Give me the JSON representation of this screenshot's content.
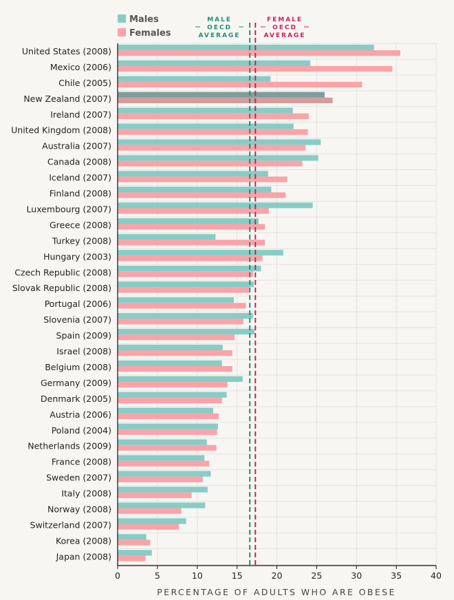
{
  "chart_data": {
    "type": "bar",
    "orientation": "horizontal",
    "xlabel": "PERCENTAGE OF ADULTS WHO ARE OBESE",
    "xlim": [
      0,
      40
    ],
    "xticks": [
      0,
      5,
      10,
      15,
      20,
      25,
      30,
      35,
      40
    ],
    "grid": true,
    "legend_position": "top-left",
    "categories": [
      "United States (2008)",
      "Mexico (2006)",
      "Chile (2005)",
      "New Zealand (2007)",
      "Ireland (2007)",
      "United Kingdom (2008)",
      "Australia (2007)",
      "Canada (2008)",
      "Iceland (2007)",
      "Finland (2008)",
      "Luxembourg (2007)",
      "Greece (2008)",
      "Turkey (2008)",
      "Hungary (2003)",
      "Czech Republic (2008)",
      "Slovak Republic (2008)",
      "Portugal (2006)",
      "Slovenia (2007)",
      "Spain (2009)",
      "Israel (2008)",
      "Belgium (2008)",
      "Germany (2009)",
      "Denmark (2005)",
      "Austria (2006)",
      "Poland (2004)",
      "Netherlands (2009)",
      "France (2008)",
      "Sweden (2007)",
      "Italy (2008)",
      "Norway (2008)",
      "Switzerland (2007)",
      "Korea (2008)",
      "Japan (2008)"
    ],
    "highlighted_category": "New Zealand (2007)",
    "series": [
      {
        "name": "Males",
        "color": "#88ccc6",
        "highlight_color": "#7d9e9d",
        "values": [
          32.2,
          24.2,
          19.2,
          26.0,
          22.0,
          22.1,
          25.5,
          25.2,
          18.9,
          19.3,
          24.5,
          17.7,
          12.3,
          20.8,
          18.0,
          17.1,
          14.6,
          17.0,
          17.2,
          13.2,
          13.1,
          15.7,
          13.7,
          12.0,
          12.6,
          11.2,
          10.9,
          11.7,
          11.3,
          11.0,
          8.6,
          3.6,
          4.3
        ]
      },
      {
        "name": "Females",
        "color": "#fba3a7",
        "highlight_color": "#d49c9d",
        "values": [
          35.5,
          34.5,
          30.7,
          27.0,
          24.0,
          23.9,
          23.6,
          23.2,
          21.3,
          21.1,
          19.0,
          18.5,
          18.5,
          18.2,
          17.0,
          16.5,
          16.1,
          15.8,
          14.7,
          14.4,
          14.4,
          13.8,
          13.1,
          12.7,
          12.5,
          12.4,
          11.5,
          10.7,
          9.3,
          8.0,
          7.7,
          4.1,
          3.5
        ]
      }
    ],
    "reference_lines": [
      {
        "name": "male-oecd-average",
        "value": 16.6,
        "color": "#1f8f72",
        "label_lines": [
          "MALE",
          "OECD",
          "AVERAGE"
        ]
      },
      {
        "name": "female-oecd-average",
        "value": 17.3,
        "color": "#cc1f5a",
        "label_lines": [
          "FEMALE",
          "OECD",
          "AVERAGE"
        ]
      }
    ]
  }
}
